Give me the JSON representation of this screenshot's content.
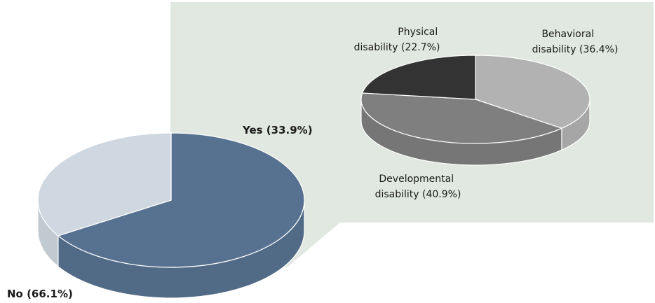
{
  "chart_data": [
    {
      "type": "pie",
      "style": "3d",
      "slices": [
        {
          "label_lines": [
            "No (66.1%)"
          ],
          "value": 66.1,
          "color": "#577290"
        },
        {
          "label_lines": [
            "Yes (33.9%)"
          ],
          "value": 33.9,
          "color": "#cfd8e1"
        }
      ]
    },
    {
      "type": "pie",
      "style": "3d",
      "slices": [
        {
          "label_lines": [
            "Behavioral",
            "disability (36.4%)"
          ],
          "value": 36.4,
          "color": "#b2b2b2"
        },
        {
          "label_lines": [
            "Developmental",
            "disability (40.9%)"
          ],
          "value": 40.9,
          "color": "#7f7f7f"
        },
        {
          "label_lines": [
            "Physical",
            "disability (22.7%)"
          ],
          "value": 22.7,
          "color": "#333333"
        }
      ]
    }
  ],
  "callout_color": "#e1e8e1"
}
